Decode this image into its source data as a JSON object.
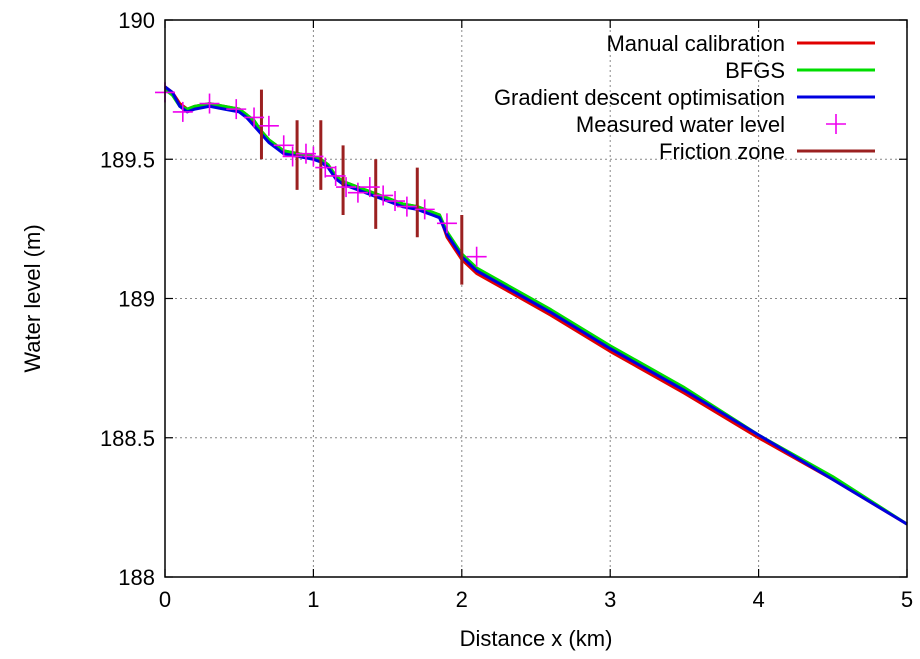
{
  "chart_data": {
    "type": "line",
    "xlabel": "Distance x (km)",
    "ylabel": "Water level (m)",
    "xlim": [
      0,
      5
    ],
    "ylim": [
      188,
      190
    ],
    "x_ticks": [
      0,
      1,
      2,
      3,
      4,
      5
    ],
    "y_ticks": [
      188,
      188.5,
      189,
      189.5,
      190
    ],
    "x_tick_labels": [
      "0",
      "1",
      "2",
      "3",
      "4",
      "5"
    ],
    "y_tick_labels": [
      "188",
      "188.5",
      "189",
      "189.5",
      "190"
    ],
    "grid": true,
    "legend_position": "top-right",
    "series": [
      {
        "name": "Manual calibration",
        "color": "#e00000",
        "x": [
          0,
          0.05,
          0.1,
          0.15,
          0.2,
          0.3,
          0.4,
          0.5,
          0.55,
          0.6,
          0.65,
          0.7,
          0.75,
          0.8,
          0.9,
          1.0,
          1.05,
          1.1,
          1.15,
          1.2,
          1.25,
          1.3,
          1.4,
          1.5,
          1.6,
          1.7,
          1.75,
          1.8,
          1.85,
          1.9,
          1.95,
          2.0,
          2.1,
          2.3,
          2.6,
          3.0,
          3.5,
          4.0,
          4.5,
          5.0
        ],
        "y": [
          189.76,
          189.74,
          189.7,
          189.68,
          189.69,
          189.7,
          189.69,
          189.68,
          189.66,
          189.63,
          189.6,
          189.57,
          189.55,
          189.53,
          189.52,
          189.51,
          189.5,
          189.48,
          189.44,
          189.42,
          189.41,
          189.4,
          189.38,
          189.36,
          189.34,
          189.33,
          189.32,
          189.31,
          189.3,
          189.22,
          189.18,
          189.14,
          189.09,
          189.03,
          188.94,
          188.81,
          188.66,
          188.5,
          188.35,
          188.19
        ]
      },
      {
        "name": "BFGS",
        "color": "#00dd00",
        "x": [
          0,
          0.05,
          0.1,
          0.15,
          0.2,
          0.3,
          0.4,
          0.5,
          0.55,
          0.6,
          0.65,
          0.7,
          0.75,
          0.8,
          0.9,
          1.0,
          1.05,
          1.1,
          1.15,
          1.2,
          1.25,
          1.3,
          1.4,
          1.5,
          1.6,
          1.7,
          1.75,
          1.8,
          1.85,
          1.9,
          1.95,
          2.0,
          2.1,
          2.3,
          2.6,
          3.0,
          3.5,
          4.0,
          4.5,
          5.0
        ],
        "y": [
          189.75,
          189.73,
          189.69,
          189.68,
          189.69,
          189.7,
          189.69,
          189.68,
          189.66,
          189.64,
          189.6,
          189.57,
          189.55,
          189.53,
          189.52,
          189.51,
          189.5,
          189.48,
          189.44,
          189.42,
          189.41,
          189.4,
          189.38,
          189.36,
          189.34,
          189.33,
          189.32,
          189.31,
          189.3,
          189.24,
          189.2,
          189.16,
          189.11,
          189.05,
          188.96,
          188.83,
          188.68,
          188.51,
          188.36,
          188.19
        ]
      },
      {
        "name": "Gradient descent optimisation",
        "color": "#0000e0",
        "x": [
          0,
          0.05,
          0.1,
          0.15,
          0.2,
          0.3,
          0.4,
          0.5,
          0.55,
          0.6,
          0.65,
          0.7,
          0.75,
          0.8,
          0.9,
          1.0,
          1.05,
          1.1,
          1.15,
          1.2,
          1.25,
          1.3,
          1.4,
          1.5,
          1.6,
          1.7,
          1.75,
          1.8,
          1.85,
          1.9,
          1.95,
          2.0,
          2.1,
          2.3,
          2.6,
          3.0,
          3.5,
          4.0,
          4.5,
          5.0
        ],
        "y": [
          189.76,
          189.74,
          189.69,
          189.67,
          189.68,
          189.69,
          189.68,
          189.67,
          189.65,
          189.62,
          189.59,
          189.56,
          189.54,
          189.52,
          189.51,
          189.5,
          189.49,
          189.47,
          189.43,
          189.41,
          189.4,
          189.39,
          189.37,
          189.35,
          189.33,
          189.32,
          189.31,
          189.3,
          189.29,
          189.23,
          189.19,
          189.15,
          189.1,
          189.04,
          188.95,
          188.82,
          188.67,
          188.51,
          188.35,
          188.19
        ]
      }
    ],
    "measured": {
      "name": "Measured water level",
      "color": "#ee00ee",
      "x": [
        0.0,
        0.12,
        0.3,
        0.48,
        0.6,
        0.7,
        0.8,
        0.86,
        0.95,
        1.0,
        1.08,
        1.15,
        1.22,
        1.3,
        1.38,
        1.47,
        1.55,
        1.63,
        1.75,
        1.9,
        2.1
      ],
      "y": [
        189.74,
        189.67,
        189.7,
        189.68,
        189.65,
        189.62,
        189.55,
        189.51,
        189.52,
        189.51,
        189.47,
        189.44,
        189.4,
        189.38,
        189.4,
        189.37,
        189.35,
        189.33,
        189.32,
        189.27,
        189.15
      ]
    },
    "friction_zones": {
      "name": "Friction zone",
      "color": "#9b2020",
      "segments": [
        {
          "x": 0.65,
          "y0": 189.5,
          "y1": 189.75
        },
        {
          "x": 0.89,
          "y0": 189.39,
          "y1": 189.64
        },
        {
          "x": 1.05,
          "y0": 189.39,
          "y1": 189.64
        },
        {
          "x": 1.2,
          "y0": 189.3,
          "y1": 189.55
        },
        {
          "x": 1.42,
          "y0": 189.25,
          "y1": 189.5
        },
        {
          "x": 1.7,
          "y0": 189.22,
          "y1": 189.47
        },
        {
          "x": 2.0,
          "y0": 189.05,
          "y1": 189.3
        }
      ]
    }
  }
}
